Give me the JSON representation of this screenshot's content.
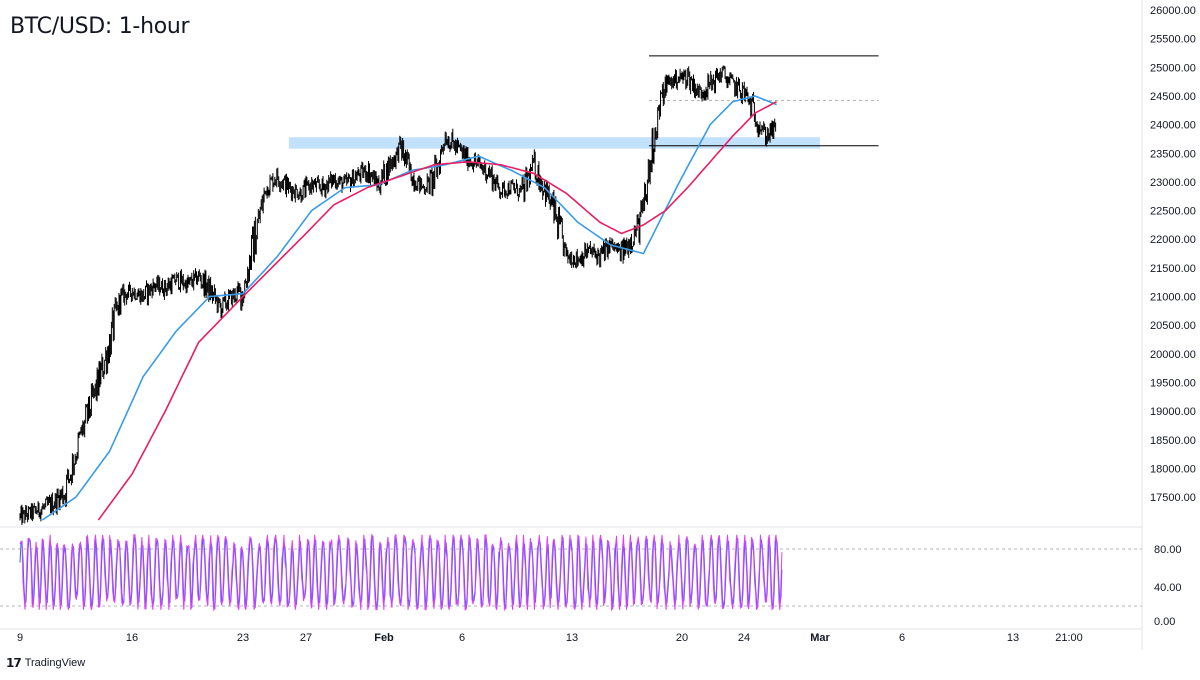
{
  "header": {
    "title": "BTC/USD: 1-hour"
  },
  "branding": {
    "logo_icon": "tradingview-logo-icon",
    "name": "TradingView"
  },
  "colors": {
    "candle": "#000000",
    "ma_fast": "#3a9be8",
    "ma_slow": "#e91e63",
    "zone": "#bbdefb",
    "stochastic_k": "#2962ff",
    "stochastic_d": "#e040fb",
    "grid_line": "#b2b5be"
  },
  "chart_data": [
    {
      "type": "candlestick",
      "title": "BTC/USD: 1-hour",
      "x_tick_labels": [
        "9",
        "16",
        "23",
        "27",
        "Feb",
        "6",
        "13",
        "20",
        "24",
        "Mar",
        "6",
        "13",
        "21:00"
      ],
      "y_tick_labels": [
        "26000.00",
        "25500.00",
        "25000.00",
        "24500.00",
        "24000.00",
        "23500.00",
        "23000.00",
        "22500.00",
        "22000.00",
        "21500.00",
        "21000.00",
        "20500.00",
        "20000.00",
        "19500.00",
        "19000.00",
        "18500.00",
        "18000.00",
        "17500.00"
      ],
      "ylim": [
        17100,
        26000
      ],
      "price_path": [
        [
          0,
          17150
        ],
        [
          2,
          17300
        ],
        [
          3,
          17400
        ],
        [
          4,
          17600
        ],
        [
          5,
          18300
        ],
        [
          6,
          18900
        ],
        [
          7,
          19500
        ],
        [
          8,
          20200
        ],
        [
          9,
          21000
        ],
        [
          10,
          21100
        ],
        [
          11,
          21000
        ],
        [
          12,
          21200
        ],
        [
          13,
          21150
        ],
        [
          14,
          21300
        ],
        [
          15,
          21200
        ],
        [
          16,
          21350
        ],
        [
          17,
          21100
        ],
        [
          18,
          20800
        ],
        [
          19,
          21000
        ],
        [
          20,
          21100
        ],
        [
          21,
          22000
        ],
        [
          22,
          22900
        ],
        [
          23,
          23100
        ],
        [
          24,
          22900
        ],
        [
          25,
          22800
        ],
        [
          26,
          22950
        ],
        [
          27,
          22900
        ],
        [
          28,
          23050
        ],
        [
          29,
          22950
        ],
        [
          30,
          23100
        ],
        [
          31,
          23200
        ],
        [
          32,
          22950
        ],
        [
          33,
          23300
        ],
        [
          34,
          23600
        ],
        [
          35,
          23100
        ],
        [
          36,
          22900
        ],
        [
          37,
          23050
        ],
        [
          38,
          23800
        ],
        [
          39,
          23600
        ],
        [
          40,
          23400
        ],
        [
          41,
          23300
        ],
        [
          42,
          23150
        ],
        [
          43,
          22850
        ],
        [
          44,
          22900
        ],
        [
          45,
          22800
        ],
        [
          46,
          23300
        ],
        [
          47,
          22900
        ],
        [
          48,
          22400
        ],
        [
          49,
          21700
        ],
        [
          50,
          21650
        ],
        [
          51,
          21800
        ],
        [
          52,
          21700
        ],
        [
          53,
          21900
        ],
        [
          54,
          21750
        ],
        [
          55,
          22050
        ],
        [
          56,
          22400
        ],
        [
          57,
          23900
        ],
        [
          58,
          24700
        ],
        [
          59,
          24800
        ],
        [
          60,
          24850
        ],
        [
          61,
          24550
        ],
        [
          62,
          24700
        ],
        [
          63,
          24900
        ],
        [
          64,
          24700
        ],
        [
          65,
          24550
        ],
        [
          66,
          24200
        ],
        [
          67,
          23800
        ],
        [
          68,
          23950
        ]
      ],
      "series": [
        {
          "name": "",
          "role": "ma_fast",
          "points": [
            [
              2,
              17100
            ],
            [
              5,
              17500
            ],
            [
              8,
              18300
            ],
            [
              11,
              19600
            ],
            [
              14,
              20400
            ],
            [
              17,
              21000
            ],
            [
              20,
              21050
            ],
            [
              23,
              21700
            ],
            [
              26,
              22500
            ],
            [
              29,
              22900
            ],
            [
              32,
              22950
            ],
            [
              35,
              23200
            ],
            [
              38,
              23300
            ],
            [
              41,
              23450
            ],
            [
              44,
              23200
            ],
            [
              47,
              22900
            ],
            [
              50,
              22300
            ],
            [
              53,
              21900
            ],
            [
              56,
              21750
            ],
            [
              59,
              22900
            ],
            [
              62,
              24000
            ],
            [
              64,
              24400
            ],
            [
              66,
              24500
            ],
            [
              68,
              24350
            ]
          ]
        },
        {
          "name": "",
          "role": "ma_slow",
          "points": [
            [
              7,
              17100
            ],
            [
              10,
              17900
            ],
            [
              13,
              19000
            ],
            [
              16,
              20200
            ],
            [
              19,
              20800
            ],
            [
              22,
              21400
            ],
            [
              25,
              22000
            ],
            [
              28,
              22600
            ],
            [
              31,
              22900
            ],
            [
              34,
              23100
            ],
            [
              37,
              23300
            ],
            [
              40,
              23350
            ],
            [
              43,
              23300
            ],
            [
              46,
              23150
            ],
            [
              49,
              22800
            ],
            [
              52,
              22300
            ],
            [
              54,
              22100
            ],
            [
              56,
              22250
            ],
            [
              58,
              22500
            ],
            [
              60,
              22900
            ],
            [
              62,
              23350
            ],
            [
              64,
              23800
            ],
            [
              66,
              24200
            ],
            [
              68,
              24400
            ]
          ]
        }
      ],
      "annotations": [
        {
          "type": "zone",
          "x_range": [
            24,
            72
          ],
          "y_range": [
            23580,
            23780
          ]
        },
        {
          "type": "hline",
          "x_range": [
            56.5,
            77
          ],
          "y": 25200
        },
        {
          "type": "hline",
          "x_range": [
            56.5,
            77
          ],
          "y": 23630
        },
        {
          "type": "hline_dashed",
          "x_range": [
            56.5,
            77
          ],
          "y": 24420
        }
      ],
      "x_range": [
        0,
        105
      ]
    },
    {
      "type": "line",
      "xlabel": "",
      "ylabel": "",
      "y_tick_labels": [
        "80.00",
        "40.00",
        "0.00"
      ],
      "ylim": [
        0,
        100
      ],
      "levels": [
        80,
        20
      ],
      "x_range": [
        0,
        105
      ],
      "oscillation": {
        "x_end": 68.5,
        "min": 16,
        "max": 95
      }
    }
  ]
}
